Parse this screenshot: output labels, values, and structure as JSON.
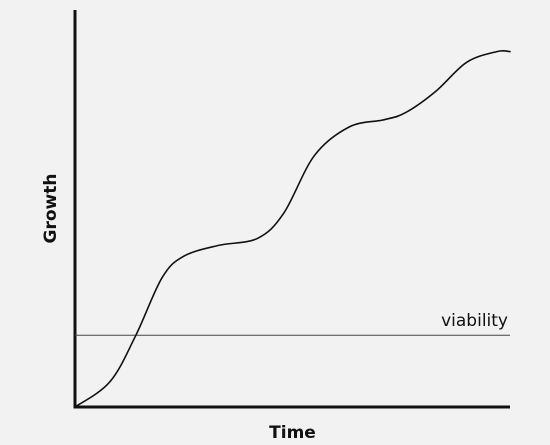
{
  "chart_data": {
    "type": "line",
    "xlabel": "Time",
    "ylabel": "Growth",
    "title": "",
    "grid": false,
    "legend": "none",
    "xlim": [
      0,
      100
    ],
    "ylim": [
      0,
      100
    ],
    "series": [
      {
        "x": [
          0,
          8,
          14,
          20,
          25,
          33,
          42,
          48,
          55,
          63,
          71,
          76,
          83,
          90,
          97,
          100
        ],
        "values": [
          0,
          7,
          20,
          36,
          42,
          45,
          47,
          54,
          70,
          78,
          80,
          82,
          88,
          96,
          99,
          99
        ]
      }
    ],
    "reference_lines": [
      {
        "orientation": "horizontal",
        "y": 20,
        "label": "viability"
      }
    ],
    "colors": {
      "line": "#111111",
      "axis": "#111111",
      "reference": "#444444",
      "background": "#f2f2f2"
    }
  }
}
